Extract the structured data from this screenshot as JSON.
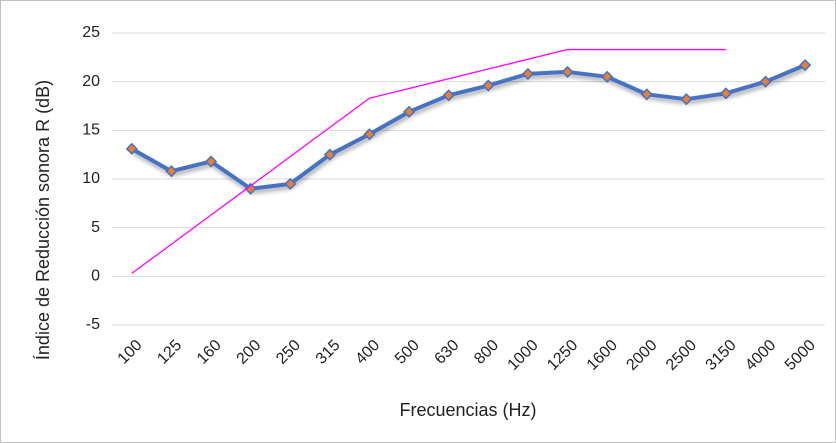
{
  "chart_data": {
    "type": "line",
    "y_label": "Índice de Reducción sonora R (dB)",
    "x_label": "Frecuencias (Hz)",
    "categories": [
      "100",
      "125",
      "160",
      "200",
      "250",
      "315",
      "400",
      "500",
      "630",
      "800",
      "1000",
      "1250",
      "1600",
      "2000",
      "2500",
      "3150",
      "4000",
      "5000"
    ],
    "series": [
      {
        "color": "#4472c4",
        "marker_color": "#ed7d31",
        "markers": true,
        "width": 4,
        "values": [
          13.1,
          10.8,
          11.8,
          9.0,
          9.5,
          12.5,
          14.6,
          16.9,
          18.6,
          19.6,
          20.8,
          21.0,
          20.5,
          18.7,
          18.2,
          18.8,
          20.0,
          21.7
        ]
      },
      {
        "color": "#ff00ff",
        "markers": false,
        "width": 1.3,
        "values": [
          0.3,
          3.3,
          6.3,
          9.3,
          12.3,
          15.3,
          18.3,
          19.3,
          20.3,
          21.3,
          22.3,
          23.3,
          23.3,
          23.3,
          23.3,
          23.3,
          null,
          null
        ]
      }
    ],
    "ylim": [
      -5,
      25
    ],
    "yticks": [
      -5,
      0,
      5,
      10,
      15,
      20,
      25
    ],
    "grid": true
  }
}
